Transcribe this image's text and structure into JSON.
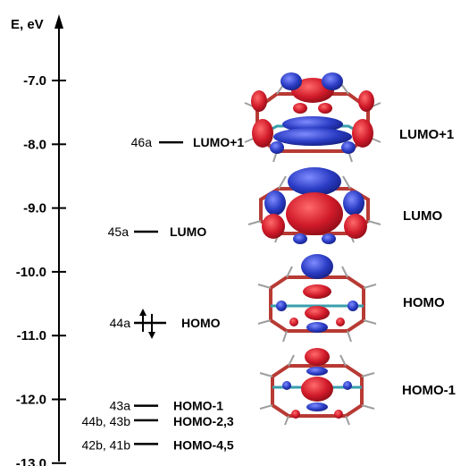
{
  "axis": {
    "title": "E, eV",
    "ticks": [
      {
        "value": -7.0,
        "label": "-7.0"
      },
      {
        "value": -8.0,
        "label": "-8.0"
      },
      {
        "value": -9.0,
        "label": "-9.0"
      },
      {
        "value": -10.0,
        "label": "-10.0"
      },
      {
        "value": -11.0,
        "label": "-11.0"
      },
      {
        "value": -12.0,
        "label": "-12.0"
      },
      {
        "value": -13.0,
        "label": "-13.0"
      }
    ]
  },
  "levels": [
    {
      "id": "lumo1",
      "energy": -7.97,
      "symmetry": "46a",
      "name": "LUMO+1",
      "occupied": false
    },
    {
      "id": "lumo",
      "energy": -9.37,
      "symmetry": "45a",
      "name": "LUMO",
      "occupied": false
    },
    {
      "id": "homo",
      "energy": -10.8,
      "symmetry": "44a",
      "name": "HOMO",
      "occupied": true
    },
    {
      "id": "homo1",
      "energy": -12.1,
      "symmetry": "43a",
      "name": "HOMO-1",
      "occupied": false
    },
    {
      "id": "homo23",
      "energy": -12.3,
      "symmetry": "44b, 43b",
      "name": "HOMO-2,3",
      "occupied": false
    },
    {
      "id": "homo45",
      "energy": -12.7,
      "symmetry": "42b, 41b",
      "name": "HOMO-4,5",
      "occupied": false
    }
  ],
  "orbitals": [
    {
      "id": "orb-lumo1",
      "name": "LUMO+1"
    },
    {
      "id": "orb-lumo",
      "name": "LUMO"
    },
    {
      "id": "orb-homo",
      "name": "HOMO"
    },
    {
      "id": "orb-homo1",
      "name": "HOMO-1"
    }
  ],
  "colors": {
    "positive_lobe": "#d11a2a",
    "negative_lobe": "#2a3cc4",
    "bond": "#b5302a",
    "bond_alt": "#2f9aa8"
  }
}
